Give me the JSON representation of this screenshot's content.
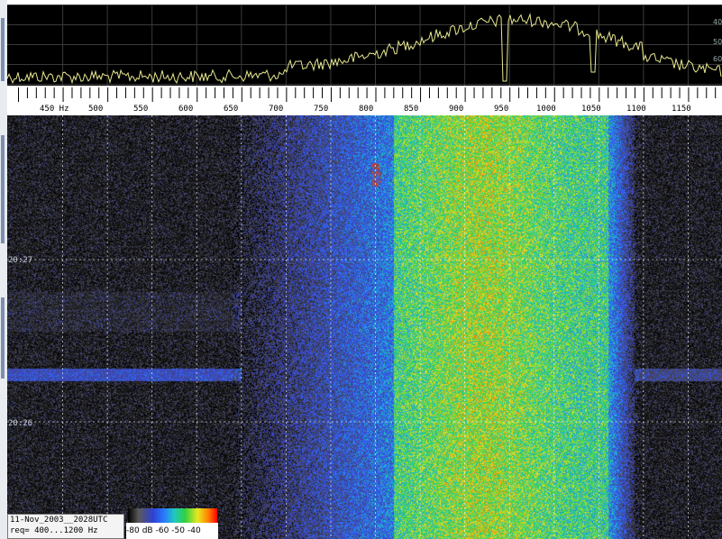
{
  "spectrum": {
    "level_labels": [
      "40",
      "50",
      "60"
    ]
  },
  "scale": {
    "ticks": [
      "450 Hz",
      "500",
      "550",
      "600",
      "650",
      "700",
      "750",
      "800",
      "850",
      "900",
      "950",
      "1000",
      "1050",
      "1100",
      "1150"
    ],
    "range_hz": [
      400,
      1200
    ]
  },
  "waterfall": {
    "time_labels": [
      "20:27",
      "20:26"
    ]
  },
  "info": {
    "date_line": "11-Nov_2003__2028UTC",
    "freq_line": "req= 400...1200 Hz"
  },
  "colorbar": {
    "labels": [
      "-80",
      "dB",
      "-60",
      "-50",
      "-40"
    ],
    "colors": [
      "#000000",
      "#5a5a5a",
      "#3040d0",
      "#2878ff",
      "#20c8c0",
      "#30d040",
      "#e8e820",
      "#ff8000",
      "#ff0000"
    ]
  },
  "colors": {
    "trace": "#e8e890",
    "grid": "#ffffff",
    "background": "#000000"
  }
}
